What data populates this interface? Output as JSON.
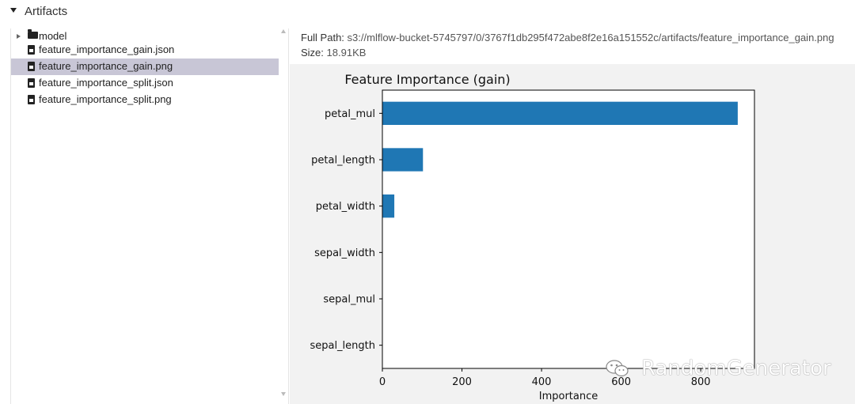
{
  "section": {
    "title": "Artifacts"
  },
  "tree": {
    "items": [
      {
        "label": "model",
        "type": "folder",
        "selected": false
      },
      {
        "label": "feature_importance_gain.json",
        "type": "file",
        "selected": false
      },
      {
        "label": "feature_importance_gain.png",
        "type": "file",
        "selected": true
      },
      {
        "label": "feature_importance_split.json",
        "type": "file",
        "selected": false
      },
      {
        "label": "feature_importance_split.png",
        "type": "file",
        "selected": false
      }
    ]
  },
  "details": {
    "path_label": "Full Path:",
    "path_value": "s3://mlflow-bucket-5745797/0/3767f1db295f472abe8f2e16a151552c/artifacts/feature_importance_gain.png",
    "size_label": "Size:",
    "size_value": "18.91KB"
  },
  "chart_data": {
    "type": "bar",
    "orientation": "horizontal",
    "title": "Feature Importance (gain)",
    "xlabel": "Importance",
    "ylabel": "",
    "categories": [
      "petal_mul",
      "petal_length",
      "petal_width",
      "sepal_width",
      "sepal_mul",
      "sepal_length"
    ],
    "values": [
      893,
      102,
      30,
      0,
      0,
      0
    ],
    "xlim": [
      0,
      935
    ],
    "xticks": [
      0,
      200,
      400,
      600,
      800
    ],
    "bar_color": "#1f77b4",
    "grid": false
  },
  "watermark": {
    "text": "RandomGenerator"
  },
  "colors": {
    "selected_row": "#c8c6d6",
    "preview_bg": "#f2f2f2"
  }
}
